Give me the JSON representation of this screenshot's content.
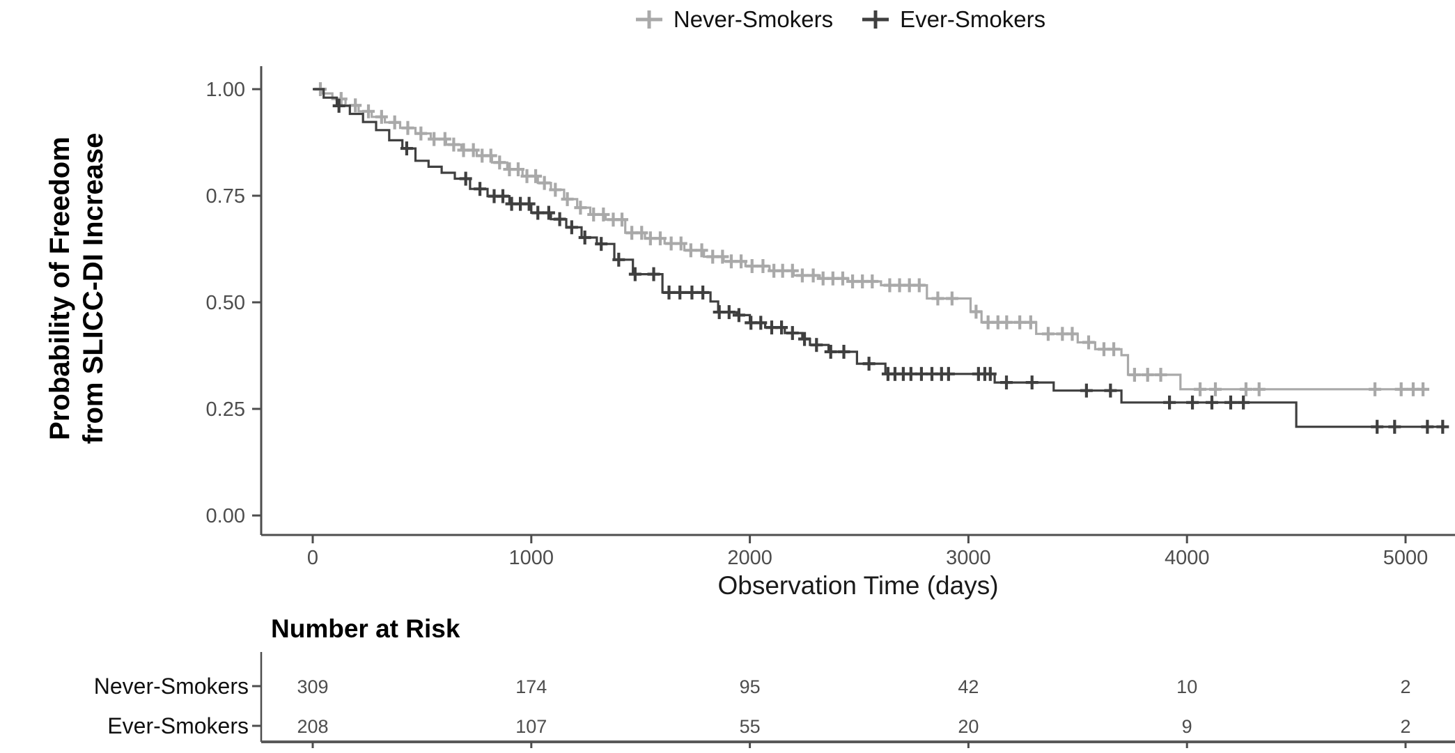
{
  "chart_data": {
    "type": "line",
    "subtype": "kaplan-meier-step",
    "title": "",
    "xlabel": "Observation Time (days)",
    "ylabel": "Probability of Freedom from SLICC-DI Increase",
    "ylabel_lines": [
      "Probability of Freedom",
      "from SLICC-DI Increase"
    ],
    "xlim": [
      0,
      5300
    ],
    "ylim": [
      0,
      1
    ],
    "grid": false,
    "legend_position": "top-center",
    "xticks": [
      0,
      1000,
      2000,
      3000,
      4000,
      5000
    ],
    "xtick_labels": [
      "0",
      "1000",
      "2000",
      "3000",
      "4000",
      "5000"
    ],
    "yticks": [
      0,
      0.25,
      0.5,
      0.75,
      1
    ],
    "ytick_labels": [
      "0.00",
      "0.25",
      "0.50",
      "0.75",
      "1.00"
    ],
    "axis_color": "#4d4d4d",
    "tick_label_color": "#4d4d4d",
    "series": [
      {
        "name": "Never-Smokers",
        "color": "#a9a9a9",
        "steps": [
          [
            0,
            1.0
          ],
          [
            40,
            0.99
          ],
          [
            90,
            0.977
          ],
          [
            150,
            0.962
          ],
          [
            210,
            0.948
          ],
          [
            270,
            0.935
          ],
          [
            330,
            0.922
          ],
          [
            400,
            0.909
          ],
          [
            470,
            0.896
          ],
          [
            540,
            0.883
          ],
          [
            610,
            0.87
          ],
          [
            680,
            0.857
          ],
          [
            750,
            0.844
          ],
          [
            820,
            0.828
          ],
          [
            890,
            0.812
          ],
          [
            960,
            0.796
          ],
          [
            1030,
            0.78
          ],
          [
            1090,
            0.764
          ],
          [
            1150,
            0.742
          ],
          [
            1210,
            0.722
          ],
          [
            1270,
            0.706
          ],
          [
            1340,
            0.694
          ],
          [
            1430,
            0.663
          ],
          [
            1520,
            0.65
          ],
          [
            1610,
            0.638
          ],
          [
            1700,
            0.622
          ],
          [
            1790,
            0.607
          ],
          [
            1880,
            0.596
          ],
          [
            1980,
            0.585
          ],
          [
            2090,
            0.574
          ],
          [
            2200,
            0.563
          ],
          [
            2320,
            0.556
          ],
          [
            2450,
            0.549
          ],
          [
            2600,
            0.54
          ],
          [
            2810,
            0.509
          ],
          [
            3010,
            0.478
          ],
          [
            3060,
            0.453
          ],
          [
            3310,
            0.426
          ],
          [
            3500,
            0.406
          ],
          [
            3580,
            0.39
          ],
          [
            3700,
            0.376
          ],
          [
            3730,
            0.33
          ],
          [
            3970,
            0.296
          ],
          [
            5080,
            0.296
          ]
        ],
        "censors": [
          35,
          130,
          195,
          255,
          315,
          375,
          435,
          495,
          555,
          605,
          645,
          690,
          735,
          775,
          815,
          855,
          900,
          940,
          980,
          1020,
          1060,
          1110,
          1165,
          1225,
          1285,
          1330,
          1375,
          1415,
          1460,
          1505,
          1545,
          1590,
          1640,
          1685,
          1730,
          1780,
          1830,
          1875,
          1915,
          1960,
          2010,
          2060,
          2110,
          2150,
          2195,
          2240,
          2290,
          2335,
          2380,
          2425,
          2470,
          2515,
          2560,
          2640,
          2685,
          2730,
          2775,
          2860,
          2925,
          3035,
          3090,
          3135,
          3175,
          3235,
          3285,
          3365,
          3430,
          3475,
          3550,
          3620,
          3665,
          3760,
          3820,
          3880,
          4060,
          4130,
          4270,
          4330,
          4860,
          4980,
          5035,
          5080
        ]
      },
      {
        "name": "Ever-Smokers",
        "color": "#3f3f3f",
        "steps": [
          [
            0,
            1.0
          ],
          [
            50,
            0.98
          ],
          [
            110,
            0.961
          ],
          [
            170,
            0.942
          ],
          [
            230,
            0.923
          ],
          [
            290,
            0.904
          ],
          [
            350,
            0.88
          ],
          [
            410,
            0.861
          ],
          [
            470,
            0.832
          ],
          [
            530,
            0.818
          ],
          [
            590,
            0.804
          ],
          [
            650,
            0.79
          ],
          [
            720,
            0.766
          ],
          [
            800,
            0.749
          ],
          [
            900,
            0.731
          ],
          [
            1000,
            0.71
          ],
          [
            1090,
            0.695
          ],
          [
            1160,
            0.676
          ],
          [
            1230,
            0.652
          ],
          [
            1300,
            0.637
          ],
          [
            1380,
            0.6
          ],
          [
            1465,
            0.566
          ],
          [
            1600,
            0.523
          ],
          [
            1820,
            0.502
          ],
          [
            1855,
            0.477
          ],
          [
            1940,
            0.47
          ],
          [
            2000,
            0.452
          ],
          [
            2070,
            0.441
          ],
          [
            2160,
            0.428
          ],
          [
            2240,
            0.414
          ],
          [
            2275,
            0.4
          ],
          [
            2360,
            0.384
          ],
          [
            2490,
            0.356
          ],
          [
            2620,
            0.332
          ],
          [
            3120,
            0.312
          ],
          [
            3390,
            0.293
          ],
          [
            3700,
            0.265
          ],
          [
            4500,
            0.208
          ],
          [
            5180,
            0.208
          ]
        ],
        "censors": [
          120,
          430,
          700,
          765,
          830,
          870,
          910,
          950,
          990,
          1030,
          1080,
          1130,
          1185,
          1245,
          1320,
          1400,
          1475,
          1560,
          1630,
          1680,
          1735,
          1785,
          1860,
          1905,
          1950,
          2005,
          2050,
          2100,
          2145,
          2195,
          2250,
          2305,
          2370,
          2430,
          2545,
          2632,
          2664,
          2702,
          2737,
          2785,
          2833,
          2877,
          2909,
          3046,
          3075,
          3100,
          3174,
          3291,
          3540,
          3650,
          3920,
          4025,
          4114,
          4200,
          4258,
          4870,
          4950,
          5100,
          5170
        ]
      }
    ],
    "risk_table": {
      "title": "Number at Risk",
      "times": [
        0,
        1000,
        2000,
        3000,
        4000,
        5000
      ],
      "rows": [
        {
          "name": "Never-Smokers",
          "counts": [
            309,
            174,
            95,
            42,
            10,
            2
          ]
        },
        {
          "name": "Ever-Smokers",
          "counts": [
            208,
            107,
            55,
            20,
            9,
            2
          ]
        }
      ]
    }
  }
}
